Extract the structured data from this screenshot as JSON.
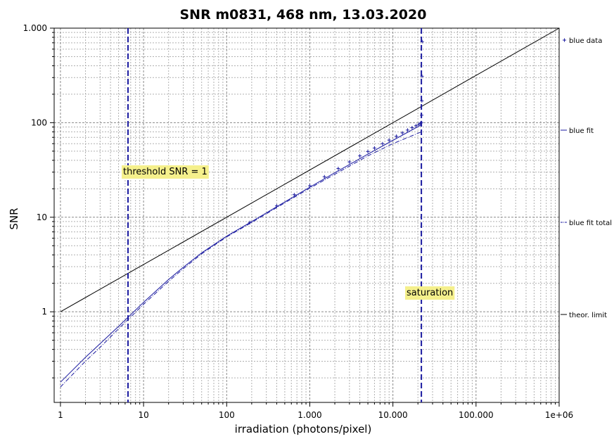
{
  "chart_data": {
    "type": "scatter",
    "title": "SNR m0831,  468 nm, 13.03.2020",
    "xlabel": "irradiation (photons/pixel)",
    "ylabel": "SNR",
    "xscale": "log",
    "yscale": "log",
    "xlim": [
      0.84,
      1000000
    ],
    "ylim": [
      0.11,
      1000
    ],
    "grid": true,
    "legend_position": "right (outside plot)",
    "x_tick_labels": [
      {
        "value": 1,
        "label": "1"
      },
      {
        "value": 10,
        "label": "10"
      },
      {
        "value": 100,
        "label": "100"
      },
      {
        "value": 1000,
        "label": "1.000"
      },
      {
        "value": 10000,
        "label": "10.000"
      },
      {
        "value": 100000,
        "label": "100.000"
      },
      {
        "value": 1000000,
        "label": "1e+06"
      }
    ],
    "y_tick_labels": [
      {
        "value": 1,
        "label": "1"
      },
      {
        "value": 10,
        "label": "10"
      },
      {
        "value": 100,
        "label": "100"
      },
      {
        "value": 1000,
        "label": "1.000"
      }
    ],
    "series": [
      {
        "name": "blue data",
        "style": "plus markers",
        "color": "#1a1aa0",
        "x": [
          190,
          400,
          650,
          1000,
          1500,
          2200,
          3000,
          4000,
          5000,
          6000,
          7500,
          9000,
          11000,
          13000,
          15000,
          17000,
          19000,
          20500,
          21500,
          22000,
          22200,
          22300,
          22400,
          22500
        ],
        "y": [
          8.8,
          13.2,
          17.3,
          21.5,
          26.8,
          32.8,
          38.5,
          44.5,
          49.5,
          54.0,
          60.0,
          65.5,
          72.0,
          78.0,
          83.5,
          88.5,
          93.0,
          96.0,
          98.5,
          100.5,
          120,
          170,
          310,
          720
        ]
      },
      {
        "name": "blue fit",
        "style": "solid line",
        "color": "#1a1aa0",
        "x": [
          1,
          2,
          3,
          5,
          7,
          10,
          20,
          30,
          50,
          100,
          200,
          500,
          1000,
          2000,
          5000,
          10000,
          22000
        ],
        "y": [
          0.18,
          0.33,
          0.46,
          0.7,
          0.93,
          1.26,
          2.2,
          2.95,
          4.2,
          6.3,
          9.0,
          14.5,
          20.8,
          29.5,
          46.5,
          65.0,
          95.0
        ]
      },
      {
        "name": "blue fit total",
        "style": "dash-dot line",
        "color": "#1a1aa0",
        "x": [
          1,
          2,
          3,
          5,
          7,
          10,
          20,
          30,
          50,
          100,
          200,
          500,
          1000,
          2000,
          5000,
          10000,
          22000
        ],
        "y": [
          0.16,
          0.3,
          0.42,
          0.66,
          0.88,
          1.2,
          2.1,
          2.85,
          4.1,
          6.2,
          8.8,
          14.2,
          20.3,
          28.5,
          44.5,
          60.0,
          80.0
        ]
      },
      {
        "name": "theor. limit",
        "style": "solid line",
        "color": "#000000",
        "x": [
          1,
          1000000
        ],
        "y": [
          1,
          1000
        ]
      }
    ],
    "vertical_lines": [
      {
        "x": 6.5,
        "label": "threshold SNR = 1",
        "style": "dashed",
        "color": "#1a1aa0"
      },
      {
        "x": 22000,
        "label": "saturation",
        "style": "dashed",
        "color": "#1a1aa0"
      }
    ]
  }
}
